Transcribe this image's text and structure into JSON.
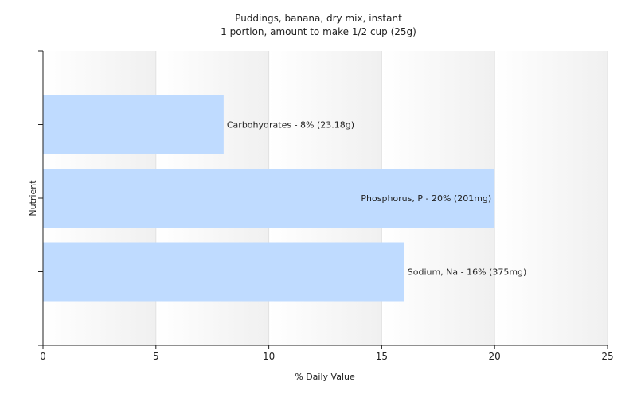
{
  "chart_data": {
    "type": "bar",
    "orientation": "horizontal",
    "title": "Puddings, banana, dry mix, instant",
    "subtitle": "1 portion, amount to make 1/2 cup (25g)",
    "xlabel": "% Daily Value",
    "ylabel": "Nutrient",
    "xlim": [
      0,
      25
    ],
    "xticks": [
      "0",
      "5",
      "10",
      "15",
      "20",
      "25"
    ],
    "grid": true,
    "categories": [
      "Carbohydrates",
      "Phosphorus, P",
      "Sodium, Na"
    ],
    "values": [
      8,
      20,
      16
    ],
    "bar_labels": [
      "Carbohydrates - 8% (23.18g)",
      "Phosphorus, P - 20% (201mg)",
      "Sodium, Na - 16% (375mg)"
    ],
    "bar_color": "#bfdbff"
  }
}
